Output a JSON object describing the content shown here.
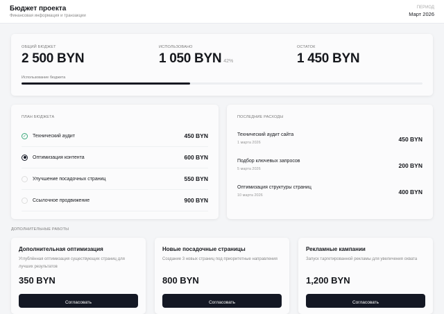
{
  "header": {
    "title": "Бюджет проекта",
    "subtitle": "Финансовая информация и транзакции",
    "period_label": "ПЕРИОД",
    "period_value": "Март 2026"
  },
  "summary": {
    "total_label": "ОБЩИЙ БЮДЖЕТ",
    "total": "2 500 BYN",
    "used_label": "ИСПОЛЬЗОВАНО",
    "used": "1 050 BYN",
    "used_pct": "42%",
    "rest_label": "ОСТАТОК",
    "rest": "1 450 BYN",
    "bar_label": "Использование бюджета",
    "progress_percent": 42
  },
  "plan": {
    "title": "ПЛАН БЮДЖЕТА",
    "items": [
      {
        "label": "Технический аудит",
        "amount": "450 BYN",
        "status": "done"
      },
      {
        "label": "Оптимизация контента",
        "amount": "600 BYN",
        "status": "active"
      },
      {
        "label": "Улучшение посадочных страниц",
        "amount": "550 BYN",
        "status": "pending"
      },
      {
        "label": "Ссылочное продвижение",
        "amount": "900 BYN",
        "status": "pending"
      }
    ]
  },
  "expenses": {
    "title": "ПОСЛЕДНИЕ РАСХОДЫ",
    "items": [
      {
        "name": "Технический аудит сайта",
        "date": "1 марта 2026",
        "amount": "450 BYN"
      },
      {
        "name": "Подбор ключевых запросов",
        "date": "5 марта 2026",
        "amount": "200 BYN"
      },
      {
        "name": "Оптимизация структуры страниц",
        "date": "10 марта 2026",
        "amount": "400 BYN"
      }
    ]
  },
  "extra": {
    "title": "ДОПОЛНИТЕЛЬНЫЕ РАБОТЫ",
    "items": [
      {
        "title": "Дополнительная оптимизация",
        "desc": "Углублённая оптимизация существующих страниц для лучших результатов",
        "price": "350 BYN",
        "button": "Согласовать"
      },
      {
        "title": "Новые посадочные страницы",
        "desc": "Создание 3 новых страниц под приоритетные направления",
        "price": "800 BYN",
        "button": "Согласовать"
      },
      {
        "title": "Рекламные кампании",
        "desc": "Запуск таргетированной рекламы для увеличения охвата",
        "price": "1,200 BYN",
        "button": "Согласовать"
      }
    ]
  },
  "colors": {
    "accent": "#141824",
    "done": "#3aa87a"
  }
}
